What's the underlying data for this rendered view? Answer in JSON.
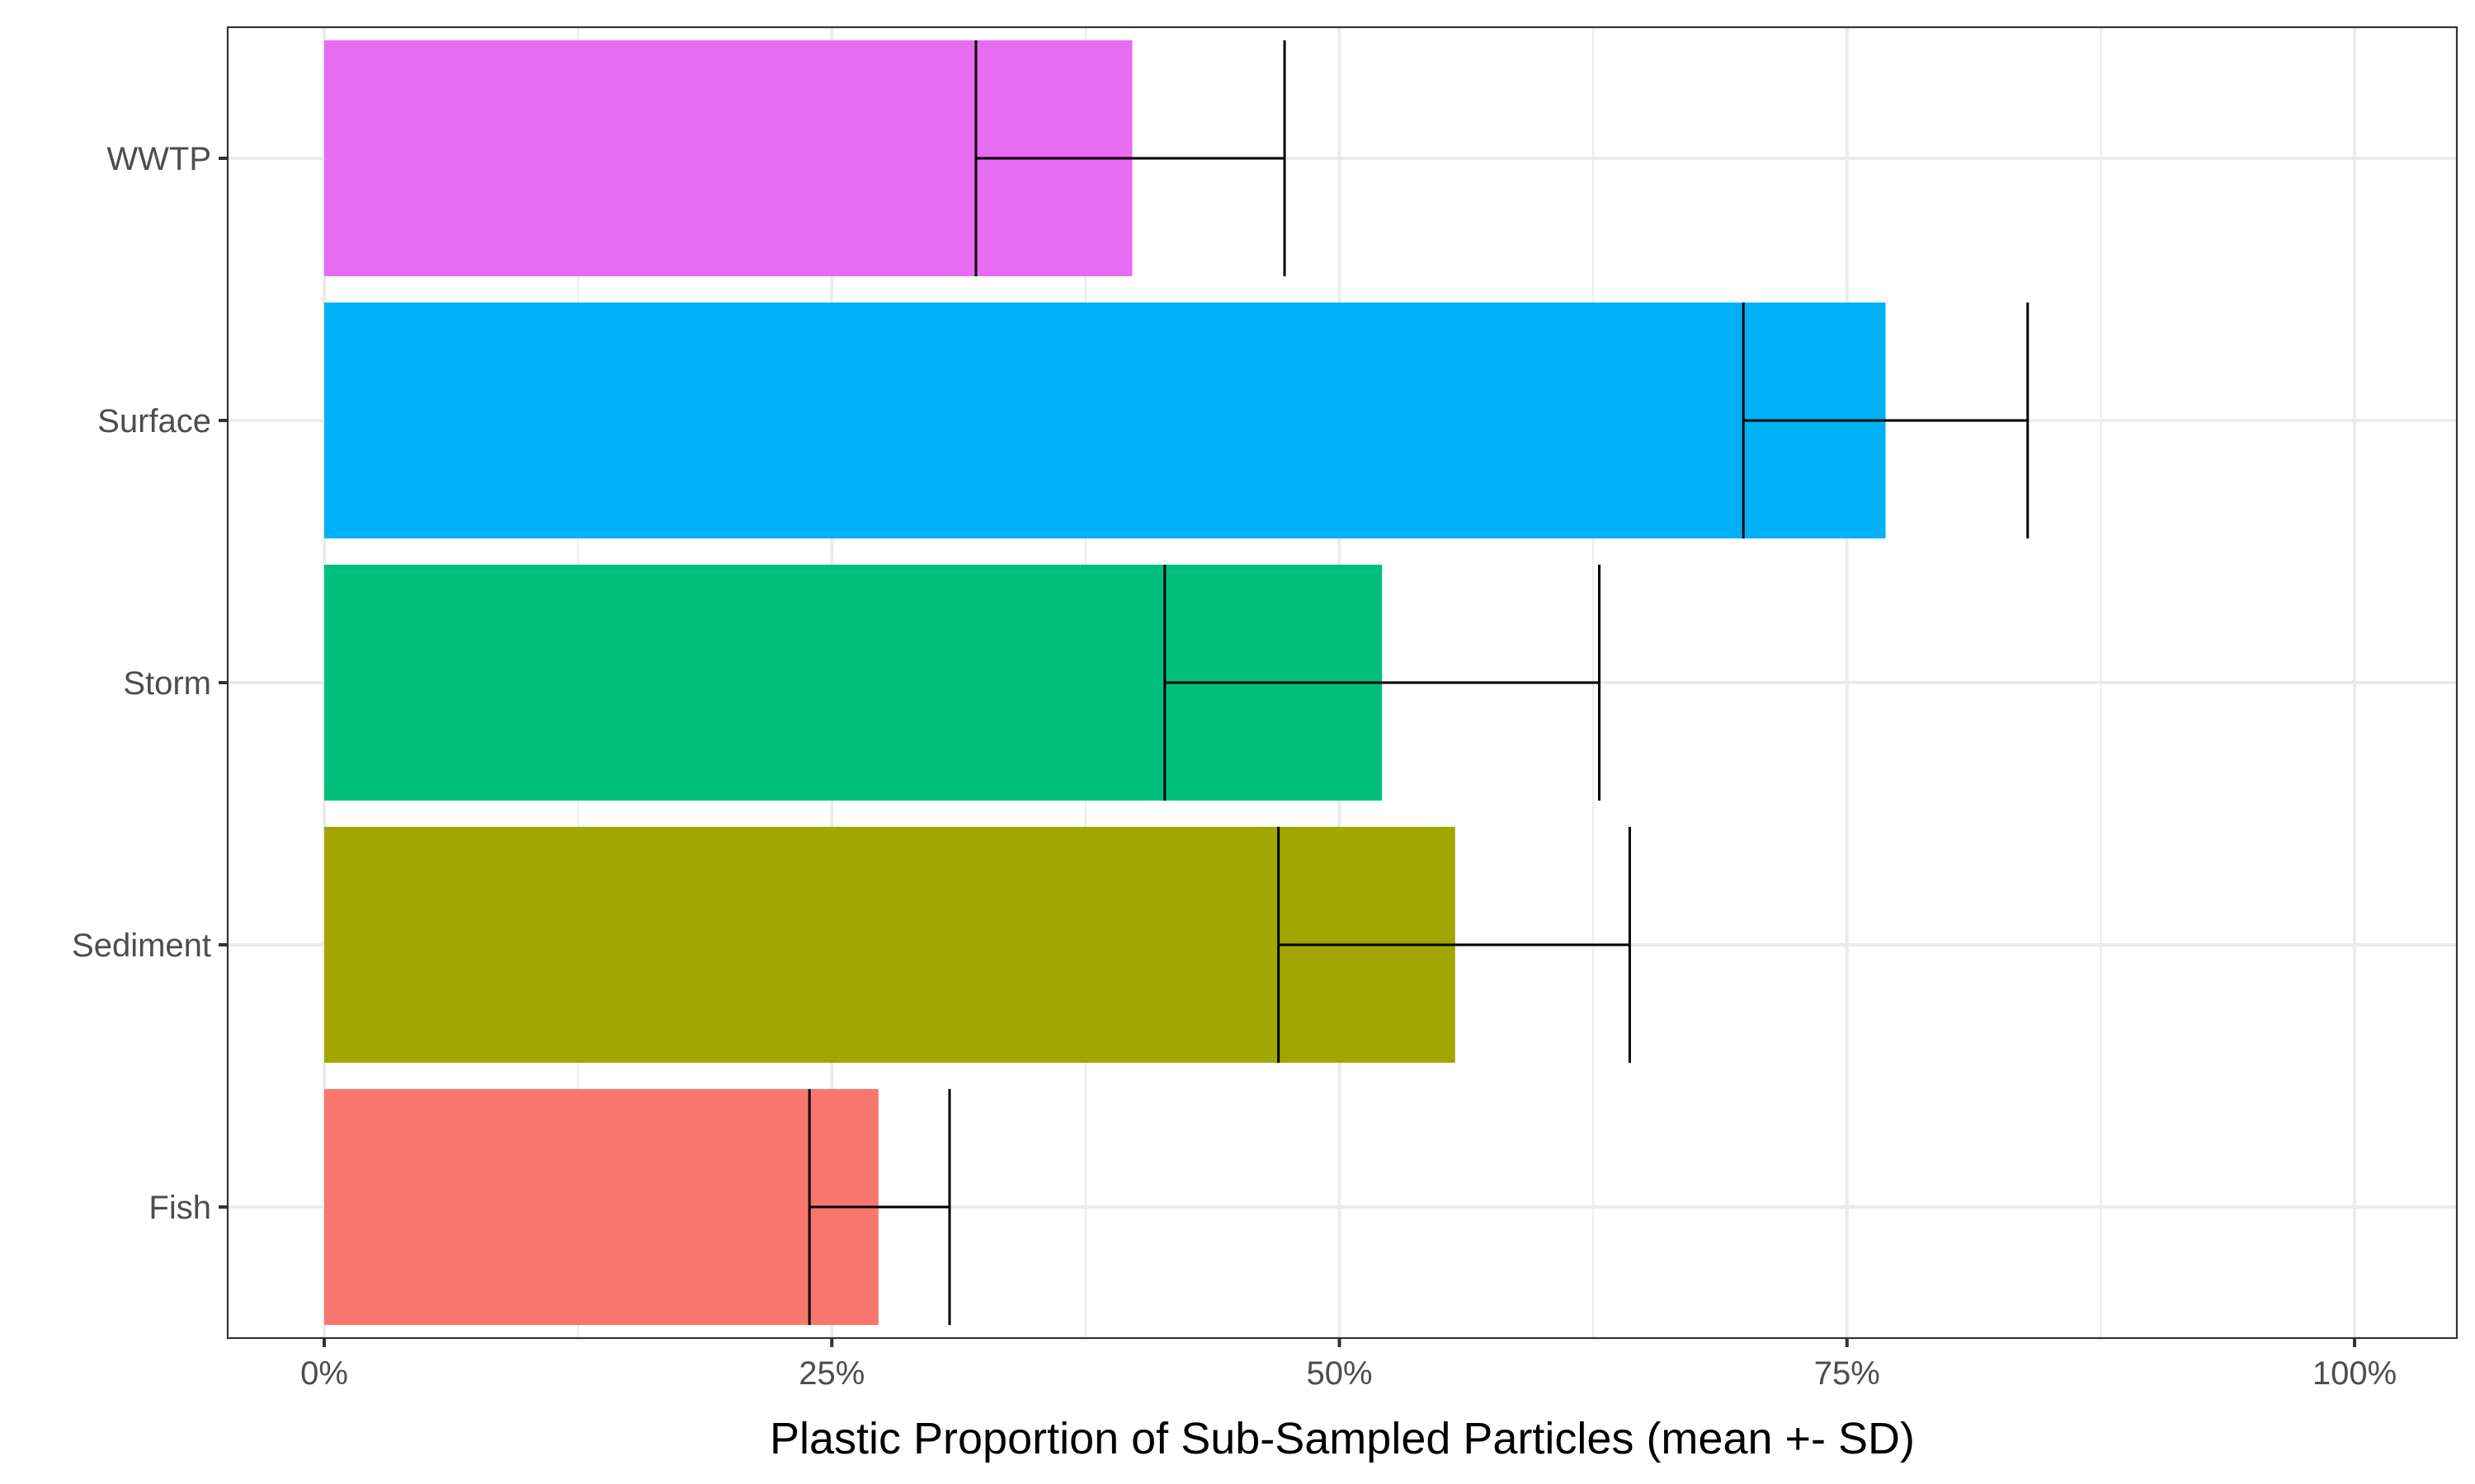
{
  "chart_data": {
    "type": "bar",
    "orientation": "horizontal",
    "title": "",
    "xlabel": "Plastic Proportion of Sub-Sampled Particles (mean +- SD)",
    "ylabel": "",
    "xlim": [
      -0.05,
      1.05
    ],
    "x_ticks": [
      0,
      0.25,
      0.5,
      0.75,
      1.0
    ],
    "x_tick_labels": [
      "0%",
      "25%",
      "50%",
      "75%",
      "100%"
    ],
    "grid": true,
    "legend": "none",
    "categories": [
      "Fish",
      "Sediment",
      "Storm",
      "Surface",
      "WWTP"
    ],
    "values": [
      0.273,
      0.557,
      0.521,
      0.769,
      0.398
    ],
    "error_low": [
      0.239,
      0.47,
      0.414,
      0.699,
      0.321
    ],
    "error_high": [
      0.308,
      0.643,
      0.628,
      0.839,
      0.473
    ],
    "colors": [
      "#F8766D",
      "#A3A500",
      "#00BF7D",
      "#00B0F6",
      "#E76BF3"
    ]
  }
}
